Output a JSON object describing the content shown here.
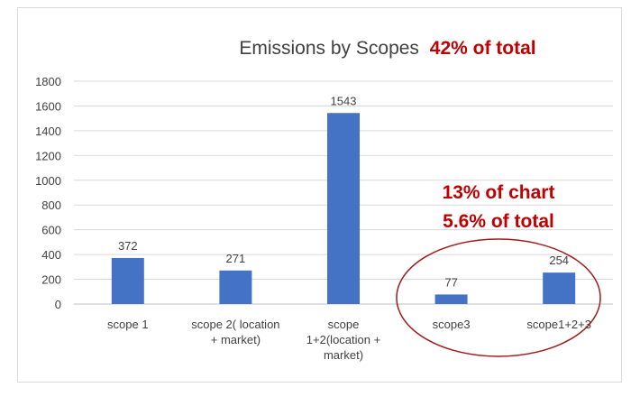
{
  "chart_data": {
    "type": "bar",
    "title": "Emissions by Scopes",
    "title_emphasis": "42% of total",
    "categories": [
      [
        "scope 1"
      ],
      [
        "scope 2( location",
        "+ market)"
      ],
      [
        "scope",
        "1+2(location +",
        "market)"
      ],
      [
        "scope3"
      ],
      [
        "scope1+2+3"
      ]
    ],
    "values": [
      372,
      271,
      1543,
      77,
      254
    ],
    "data_labels": [
      "372",
      "271",
      "1543",
      "77",
      "254"
    ],
    "ylim": [
      0,
      1800
    ],
    "y_ticks": [
      "0",
      "200",
      "400",
      "600",
      "800",
      "1000",
      "1200",
      "1400",
      "1600",
      "1800"
    ],
    "grid": true,
    "xlabel": "",
    "ylabel": "",
    "annotations": [
      "13% of chart",
      "5.6% of total"
    ],
    "colors": {
      "bar": "#4472c4",
      "emphasis": "#c00000",
      "grid": "#d9d9d9",
      "text": "#404040",
      "ellipse": "#a21b1b"
    }
  }
}
